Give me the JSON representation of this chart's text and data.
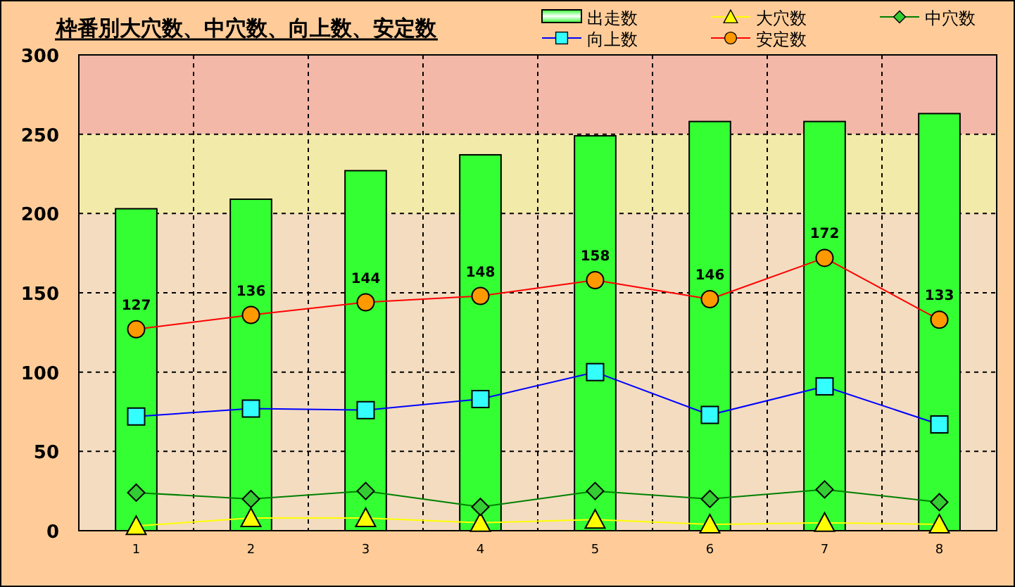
{
  "chart_data": {
    "type": "bar",
    "title": "枠番別大穴数、中穴数、向上数、安定数",
    "categories": [
      "1",
      "2",
      "3",
      "4",
      "5",
      "6",
      "7",
      "8"
    ],
    "series": [
      {
        "name": "出走数",
        "color": "#33ff33",
        "values": [
          203,
          209,
          227,
          237,
          249,
          258,
          258,
          263
        ]
      },
      {
        "name": "大穴数",
        "type": "line",
        "color": "#ffff00",
        "marker": "triangle",
        "values": [
          3,
          8,
          8,
          5,
          7,
          4,
          5,
          4
        ]
      },
      {
        "name": "中穴数",
        "type": "line",
        "color": "#008000",
        "marker": "diamond",
        "values": [
          24,
          20,
          25,
          15,
          25,
          20,
          26,
          18
        ]
      },
      {
        "name": "向上数",
        "type": "line",
        "color": "#0000ff",
        "marker": "square",
        "values": [
          72,
          77,
          76,
          83,
          100,
          73,
          91,
          67
        ]
      },
      {
        "name": "安定数",
        "type": "line",
        "color": "#ff0000",
        "marker": "circle",
        "values": [
          127,
          136,
          144,
          148,
          158,
          146,
          172,
          133
        ],
        "value_labels": [
          "127",
          "136",
          "144",
          "148",
          "158",
          "146",
          "172",
          "133"
        ]
      }
    ],
    "ylim": [
      0,
      300
    ],
    "yticks": [
      0,
      50,
      100,
      150,
      200,
      250,
      300
    ],
    "bands": [
      {
        "axis": "y",
        "from": 250,
        "to": 300,
        "color": "#f4b8a8"
      },
      {
        "axis": "y",
        "from": 200,
        "to": 250,
        "color": "#f2eaa8"
      }
    ],
    "grid": true,
    "legend": "top right",
    "line_style": "solid"
  }
}
